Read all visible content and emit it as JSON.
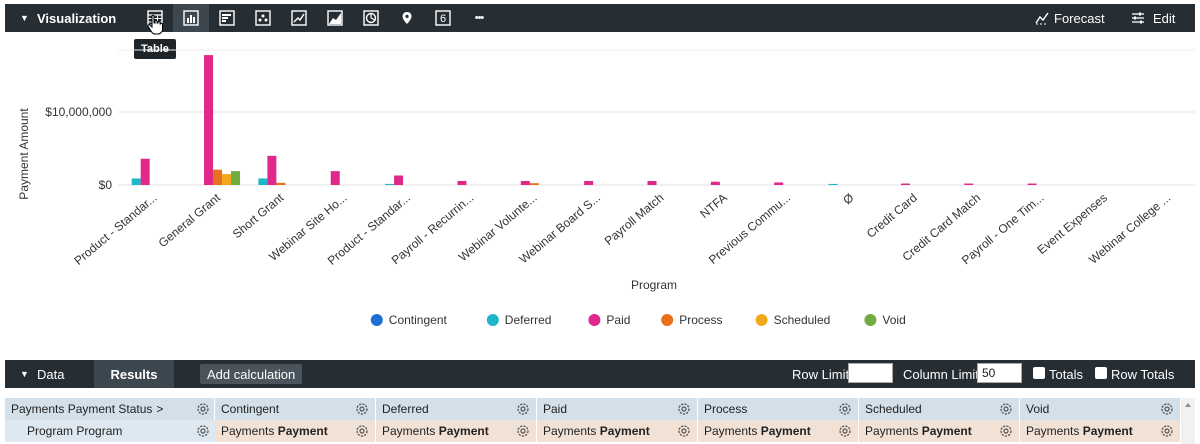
{
  "viz_bar": {
    "title": "Visualization",
    "icons": [
      "table-icon",
      "bar-chart-icon",
      "horizontal-bar-icon",
      "scatter-icon",
      "line-chart-icon",
      "area-chart-icon",
      "pie-chart-icon",
      "map-pin-icon",
      "single-value-icon",
      "more-icon"
    ],
    "single_value_glyph": "6",
    "more_glyph": "•••",
    "forecast_label": "Forecast",
    "edit_label": "Edit",
    "tooltip": "Table"
  },
  "chart_data": {
    "type": "bar",
    "xlabel": "Program",
    "ylabel": "Payment Amount",
    "ytick_labels": [
      "$0",
      "$10,000,000"
    ],
    "yticks": [
      0,
      10000000
    ],
    "ylim": [
      0,
      18500000
    ],
    "grid": true,
    "legend_position": "bottom",
    "categories": [
      "Product - Standar...",
      "General Grant",
      "Short Grant",
      "Webinar Site Ho...",
      "Product - Standar...",
      "Payroll - Recurrin...",
      "Webinar Volunte...",
      "Webinar Board S...",
      "Payroll Match",
      "NTFA",
      "Previous Commu...",
      "Ø",
      "Credit Card",
      "Credit Card Match",
      "Payroll - One Tim...",
      "Event Expenses",
      "Webinar College ..."
    ],
    "series": [
      {
        "name": "Contingent",
        "color": "#1f6fd6",
        "values": [
          0,
          0,
          0,
          0,
          0,
          0,
          0,
          0,
          0,
          0,
          0,
          0,
          0,
          0,
          0,
          0,
          0
        ]
      },
      {
        "name": "Deferred",
        "color": "#1fb6cc",
        "values": [
          900000,
          0,
          900000,
          0,
          150000,
          0,
          0,
          0,
          0,
          0,
          0,
          150000,
          0,
          0,
          0,
          0,
          0
        ]
      },
      {
        "name": "Paid",
        "color": "#e0288a",
        "values": [
          3600000,
          17800000,
          4000000,
          1900000,
          1300000,
          550000,
          550000,
          550000,
          550000,
          450000,
          350000,
          0,
          200000,
          200000,
          200000,
          0,
          0
        ]
      },
      {
        "name": "Process",
        "color": "#e8711c",
        "values": [
          0,
          2100000,
          300000,
          0,
          0,
          0,
          250000,
          0,
          0,
          0,
          0,
          0,
          0,
          0,
          0,
          0,
          0
        ]
      },
      {
        "name": "Scheduled",
        "color": "#f2a81d",
        "values": [
          0,
          1500000,
          0,
          0,
          0,
          0,
          0,
          0,
          0,
          0,
          0,
          0,
          0,
          0,
          0,
          0,
          0
        ]
      },
      {
        "name": "Void",
        "color": "#72ab3e",
        "values": [
          0,
          1900000,
          0,
          0,
          0,
          0,
          0,
          0,
          0,
          0,
          0,
          0,
          0,
          0,
          0,
          0,
          0
        ]
      }
    ]
  },
  "data_bar": {
    "title": "Data",
    "tab_results": "Results",
    "add_calc": "Add calculation",
    "row_limit_label": "Row Limit",
    "row_limit_value": "",
    "col_limit_label": "Column Limit",
    "col_limit_value": "50",
    "totals_label": "Totals",
    "row_totals_label": "Row Totals"
  },
  "table": {
    "pivot_header": "Payments Payment Status",
    "pivot_arrow": ">",
    "row_header": "Program Program",
    "pivot_columns": [
      "Contingent",
      "Deferred",
      "Paid",
      "Process",
      "Scheduled",
      "Void"
    ],
    "measure_label": "Payments Payment"
  }
}
